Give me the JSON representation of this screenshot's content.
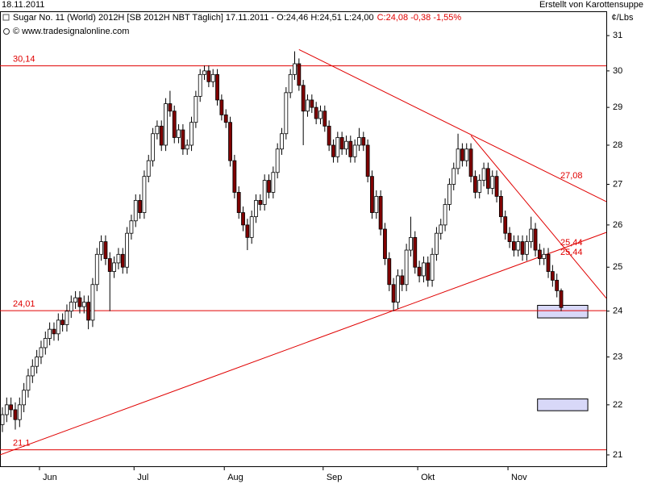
{
  "chart_data": {
    "type": "candlestick",
    "date": "18.11.2011",
    "credit": "Erstellt von Karottensuppe",
    "title": "Sugar No. 11 (World) 2012H [SB 2012H NBT  Täglich] 17.11.2011 - O:24,46 H:24,51 L:24,00",
    "title_change": "C:24,08 -0,38 -1,55%",
    "source": "© www.tradesignalonline.com",
    "y_label": "¢/Lbs",
    "log_scale": true,
    "up_color": "#ffffff",
    "down_color": "#800000",
    "line_color": "#e00000",
    "box_color": "#d8d8f8",
    "xlim": [
      -0.56,
      140.5
    ],
    "ylim": [
      20.78,
      31.66
    ],
    "yticks": [
      21,
      22,
      23,
      24,
      25,
      26,
      27,
      28,
      29,
      30,
      31
    ],
    "categories": [
      null,
      null,
      null,
      null,
      null,
      null,
      null,
      null,
      null,
      "Jun",
      null,
      null,
      null,
      null,
      null,
      null,
      null,
      null,
      null,
      null,
      null,
      null,
      null,
      null,
      null,
      null,
      null,
      null,
      null,
      null,
      null,
      "Jul",
      null,
      null,
      null,
      null,
      null,
      null,
      null,
      null,
      null,
      null,
      null,
      null,
      null,
      null,
      null,
      null,
      null,
      null,
      null,
      null,
      "Aug",
      null,
      null,
      null,
      null,
      null,
      null,
      null,
      null,
      null,
      null,
      null,
      null,
      null,
      null,
      null,
      null,
      null,
      null,
      null,
      null,
      null,
      null,
      "Sep",
      null,
      null,
      null,
      null,
      null,
      null,
      null,
      null,
      null,
      null,
      null,
      null,
      null,
      null,
      null,
      null,
      null,
      null,
      null,
      null,
      null,
      "Okt",
      null,
      null,
      null,
      null,
      null,
      null,
      null,
      null,
      null,
      null,
      null,
      null,
      null,
      null,
      null,
      null,
      null,
      null,
      null,
      null,
      "Nov",
      null,
      null,
      null,
      null,
      null,
      null,
      null,
      null,
      null,
      null,
      null,
      null
    ],
    "candles": [
      [
        21.6,
        21.95,
        21.45,
        21.8
      ],
      [
        21.8,
        22.15,
        21.65,
        22.0
      ],
      [
        22.0,
        22.15,
        21.75,
        21.9
      ],
      [
        21.9,
        22.05,
        21.5,
        21.7
      ],
      [
        21.7,
        22.15,
        21.55,
        22.0
      ],
      [
        22.0,
        22.45,
        21.85,
        22.3
      ],
      [
        22.3,
        22.75,
        22.15,
        22.6
      ],
      [
        22.6,
        22.95,
        22.45,
        22.8
      ],
      [
        22.8,
        23.15,
        22.65,
        23.0
      ],
      [
        23.0,
        23.35,
        22.85,
        23.2
      ],
      [
        23.2,
        23.55,
        23.05,
        23.4
      ],
      [
        23.4,
        23.75,
        23.25,
        23.6
      ],
      [
        23.6,
        23.75,
        23.35,
        23.5
      ],
      [
        23.5,
        23.95,
        23.35,
        23.8
      ],
      [
        23.8,
        23.95,
        23.55,
        23.7
      ],
      [
        23.7,
        24.15,
        23.55,
        24.0
      ],
      [
        24.0,
        24.35,
        23.85,
        24.2
      ],
      [
        24.2,
        24.45,
        24.05,
        24.3
      ],
      [
        24.3,
        24.45,
        23.95,
        24.1
      ],
      [
        24.1,
        24.35,
        23.95,
        24.2
      ],
      [
        24.2,
        24.35,
        23.6,
        23.8
      ],
      [
        23.8,
        24.75,
        23.65,
        24.6
      ],
      [
        24.6,
        25.45,
        24.45,
        25.3
      ],
      [
        25.3,
        25.75,
        25.15,
        25.6
      ],
      [
        25.6,
        25.75,
        25.05,
        25.2
      ],
      [
        25.2,
        25.35,
        24.0,
        24.9
      ],
      [
        24.9,
        25.25,
        24.75,
        25.1
      ],
      [
        25.1,
        25.45,
        24.95,
        25.3
      ],
      [
        25.3,
        25.45,
        24.85,
        25.0
      ],
      [
        25.0,
        25.95,
        24.85,
        25.8
      ],
      [
        25.8,
        26.25,
        25.65,
        26.1
      ],
      [
        26.1,
        26.75,
        25.95,
        26.6
      ],
      [
        26.6,
        26.75,
        26.15,
        26.3
      ],
      [
        26.3,
        27.35,
        26.15,
        27.2
      ],
      [
        27.2,
        27.75,
        27.05,
        27.6
      ],
      [
        27.6,
        28.45,
        27.45,
        28.3
      ],
      [
        28.3,
        28.65,
        28.15,
        28.5
      ],
      [
        28.5,
        28.65,
        27.85,
        28.0
      ],
      [
        28.0,
        29.25,
        27.85,
        29.1
      ],
      [
        29.1,
        29.45,
        28.75,
        28.9
      ],
      [
        28.9,
        29.05,
        28.05,
        28.2
      ],
      [
        28.2,
        28.55,
        28.05,
        28.4
      ],
      [
        28.4,
        28.55,
        27.75,
        27.9
      ],
      [
        27.9,
        28.15,
        27.75,
        28.0
      ],
      [
        28.0,
        28.75,
        27.85,
        28.6
      ],
      [
        28.6,
        29.45,
        28.45,
        29.3
      ],
      [
        29.3,
        30.05,
        29.15,
        29.9
      ],
      [
        29.9,
        30.15,
        29.75,
        30.0
      ],
      [
        30.0,
        30.15,
        29.55,
        29.7
      ],
      [
        29.7,
        30.05,
        29.55,
        29.9
      ],
      [
        29.9,
        30.05,
        29.05,
        29.2
      ],
      [
        29.2,
        29.35,
        28.65,
        28.8
      ],
      [
        28.8,
        28.95,
        28.45,
        28.6
      ],
      [
        28.6,
        28.75,
        27.45,
        27.6
      ],
      [
        27.6,
        27.75,
        26.65,
        26.8
      ],
      [
        26.8,
        26.95,
        26.15,
        26.3
      ],
      [
        26.3,
        26.45,
        25.85,
        26.0
      ],
      [
        26.0,
        26.15,
        25.4,
        25.7
      ],
      [
        25.7,
        26.35,
        25.55,
        26.2
      ],
      [
        26.2,
        26.75,
        26.05,
        26.6
      ],
      [
        26.6,
        26.75,
        26.35,
        26.5
      ],
      [
        26.5,
        27.25,
        26.35,
        27.1
      ],
      [
        27.1,
        27.25,
        26.65,
        26.8
      ],
      [
        26.8,
        27.45,
        26.65,
        27.3
      ],
      [
        27.3,
        28.05,
        27.15,
        27.9
      ],
      [
        27.9,
        28.45,
        27.75,
        28.3
      ],
      [
        28.3,
        29.55,
        28.15,
        29.4
      ],
      [
        29.4,
        30.05,
        29.25,
        29.9
      ],
      [
        29.9,
        30.55,
        29.75,
        30.2
      ],
      [
        30.2,
        30.35,
        29.45,
        29.6
      ],
      [
        29.6,
        29.75,
        28.0,
        28.9
      ],
      [
        28.9,
        29.35,
        28.75,
        29.2
      ],
      [
        29.2,
        29.35,
        28.85,
        29.0
      ],
      [
        29.0,
        29.15,
        28.55,
        28.7
      ],
      [
        28.7,
        29.05,
        28.55,
        28.9
      ],
      [
        28.9,
        29.05,
        28.35,
        28.5
      ],
      [
        28.5,
        28.65,
        27.85,
        28.0
      ],
      [
        28.0,
        28.15,
        27.55,
        27.7
      ],
      [
        27.7,
        28.35,
        27.55,
        28.2
      ],
      [
        28.2,
        28.35,
        27.75,
        27.9
      ],
      [
        27.9,
        28.25,
        27.75,
        28.1
      ],
      [
        28.1,
        28.25,
        27.55,
        27.7
      ],
      [
        27.7,
        28.15,
        27.55,
        28.0
      ],
      [
        28.0,
        28.45,
        27.85,
        28.2
      ],
      [
        28.2,
        28.35,
        27.85,
        28.0
      ],
      [
        28.0,
        28.15,
        27.05,
        27.2
      ],
      [
        27.2,
        27.35,
        26.15,
        26.3
      ],
      [
        26.3,
        26.85,
        26.15,
        26.7
      ],
      [
        26.7,
        26.85,
        25.75,
        25.9
      ],
      [
        25.9,
        26.05,
        25.05,
        25.2
      ],
      [
        25.2,
        25.35,
        24.45,
        24.6
      ],
      [
        24.6,
        24.75,
        24.0,
        24.2
      ],
      [
        24.2,
        24.95,
        24.05,
        24.8
      ],
      [
        24.8,
        24.95,
        24.45,
        24.6
      ],
      [
        24.6,
        25.55,
        24.45,
        25.4
      ],
      [
        25.4,
        26.2,
        25.25,
        25.7
      ],
      [
        25.7,
        25.85,
        24.85,
        25.0
      ],
      [
        25.0,
        25.15,
        24.65,
        24.8
      ],
      [
        24.8,
        25.25,
        24.65,
        25.1
      ],
      [
        25.1,
        25.25,
        24.55,
        24.7
      ],
      [
        24.7,
        25.45,
        24.55,
        25.3
      ],
      [
        25.3,
        25.95,
        25.15,
        25.8
      ],
      [
        25.8,
        26.15,
        25.65,
        26.0
      ],
      [
        26.0,
        26.65,
        25.85,
        26.5
      ],
      [
        26.5,
        27.15,
        26.35,
        27.0
      ],
      [
        27.0,
        27.55,
        26.85,
        27.4
      ],
      [
        27.4,
        28.3,
        27.25,
        27.9
      ],
      [
        27.9,
        28.05,
        27.45,
        27.6
      ],
      [
        27.6,
        28.05,
        27.45,
        27.9
      ],
      [
        27.9,
        28.05,
        27.05,
        27.2
      ],
      [
        27.2,
        27.35,
        26.65,
        26.8
      ],
      [
        26.8,
        27.25,
        26.65,
        27.1
      ],
      [
        27.1,
        27.55,
        26.95,
        27.4
      ],
      [
        27.4,
        27.55,
        26.75,
        26.9
      ],
      [
        26.9,
        27.35,
        26.75,
        27.2
      ],
      [
        27.2,
        27.35,
        26.55,
        26.7
      ],
      [
        26.7,
        26.85,
        26.05,
        26.2
      ],
      [
        26.2,
        26.35,
        25.65,
        25.8
      ],
      [
        25.8,
        25.95,
        25.45,
        25.6
      ],
      [
        25.6,
        25.75,
        25.25,
        25.4
      ],
      [
        25.4,
        25.75,
        25.25,
        25.6
      ],
      [
        25.6,
        25.75,
        25.15,
        25.3
      ],
      [
        25.3,
        25.75,
        25.15,
        25.6
      ],
      [
        25.6,
        26.2,
        25.45,
        25.9
      ],
      [
        25.9,
        26.05,
        25.25,
        25.4
      ],
      [
        25.4,
        25.55,
        25.05,
        25.2
      ],
      [
        25.2,
        25.45,
        25.05,
        25.3
      ],
      [
        25.3,
        25.45,
        24.75,
        24.9
      ],
      [
        24.9,
        25.05,
        24.55,
        24.7
      ],
      [
        24.7,
        24.85,
        24.31,
        24.46
      ],
      [
        24.46,
        24.51,
        24.0,
        24.08
      ]
    ],
    "levels": [
      {
        "value": 30.14,
        "label": "30,14"
      },
      {
        "value": 24.01,
        "label": "24,01"
      },
      {
        "value": 21.1,
        "label": "21,1"
      }
    ],
    "trendlines": [
      {
        "x": [
          69,
          140.5
        ],
        "y": [
          30.6,
          26.57
        ],
        "label": "27,08"
      },
      {
        "x": [
          -0.56,
          140.5
        ],
        "y": [
          21.0,
          25.82
        ],
        "label": "25,44"
      },
      {
        "x": [
          109,
          140.5
        ],
        "y": [
          28.25,
          24.29
        ],
        "label": "25,44"
      }
    ],
    "boxes": [
      {
        "x": [
          124.5,
          136.2
        ],
        "y": [
          23.85,
          24.13
        ]
      },
      {
        "x": [
          124.5,
          136.2
        ],
        "y": [
          21.88,
          22.12
        ]
      }
    ]
  }
}
